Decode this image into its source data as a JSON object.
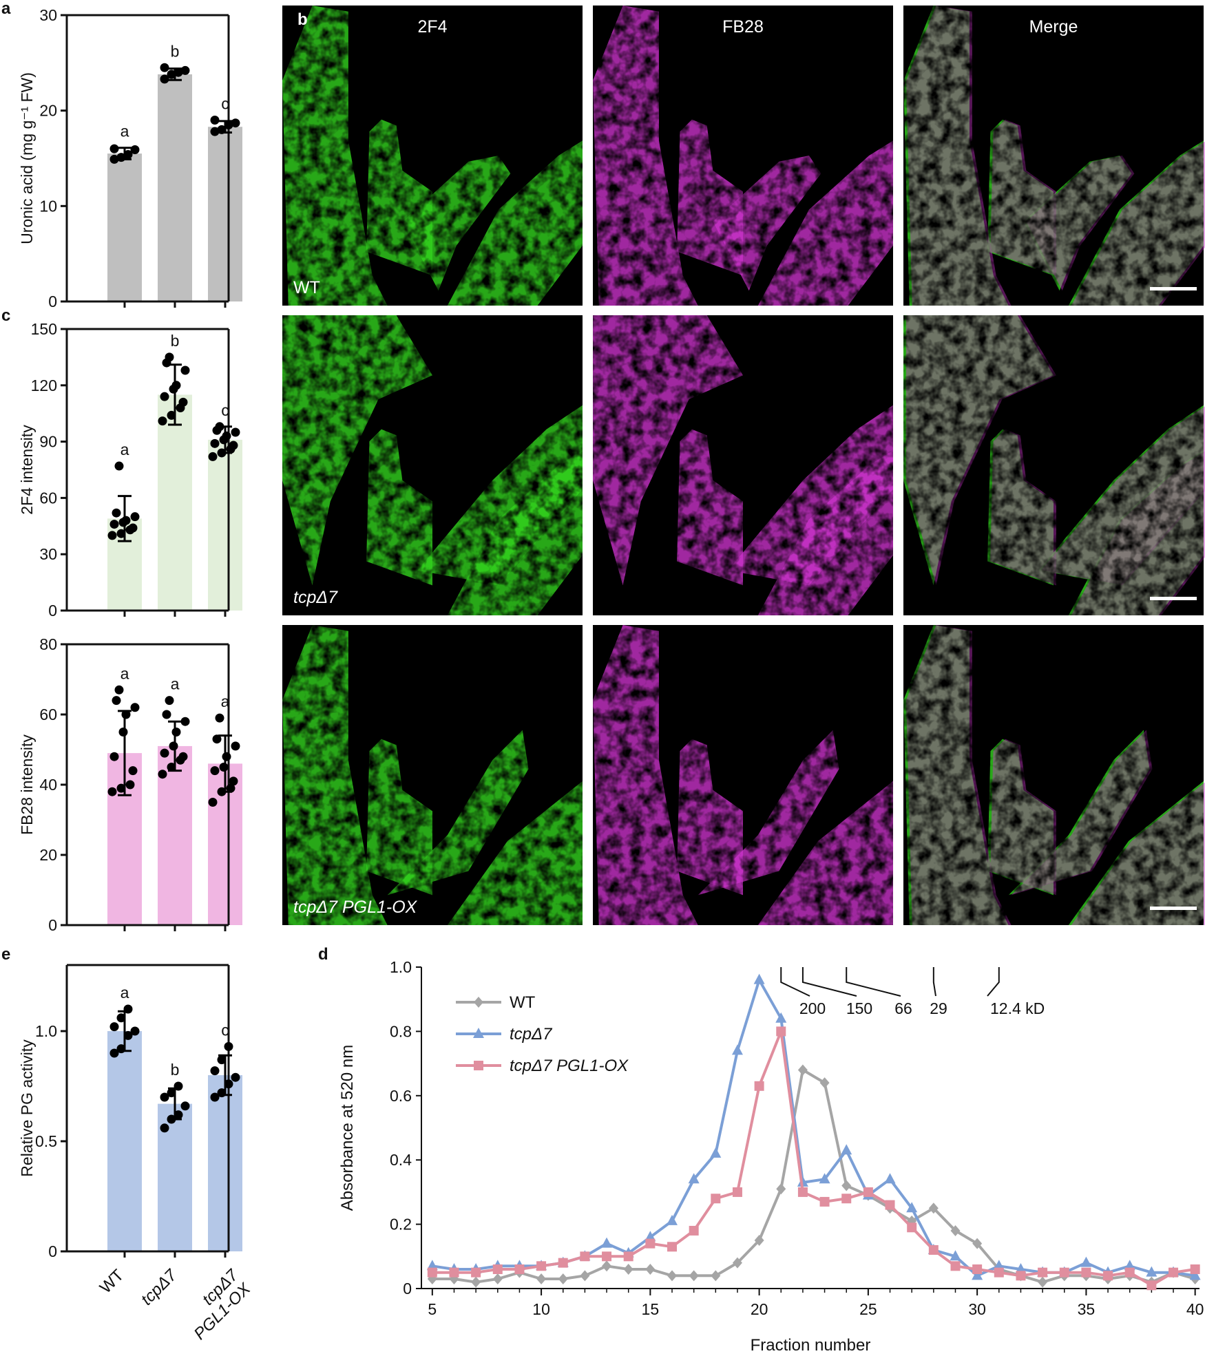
{
  "figure": {
    "panel_letters": [
      "a",
      "b",
      "c",
      "e",
      "d"
    ],
    "micro_columns": [
      "2F4",
      "FB28",
      "Merge"
    ],
    "micro_rows": [
      {
        "genotype": "WT"
      },
      {
        "genotype": "tcpΔ7"
      },
      {
        "genotype": "tcpΔ7 PGL1-OX"
      }
    ],
    "colors": {
      "wt_bar": "#bfbfbf",
      "panel_c1_bar": "#e2efda",
      "panel_c2_bar": "#f0b6e2",
      "panel_e_bar": "#b4c7e7",
      "wt_line": "#a5a5a5",
      "tcp_line": "#7b9fd6",
      "ox_line": "#e08e9e",
      "green_signal": "#32d21e",
      "magenta_signal": "#c832c8"
    }
  },
  "chart_data": [
    {
      "id": "a",
      "type": "bar",
      "categories": [
        "WT",
        "tcpΔ7",
        "tcpΔ7 PGL1-OX"
      ],
      "values": [
        15.5,
        23.8,
        18.3
      ],
      "errors": [
        0.6,
        0.6,
        0.6
      ],
      "points": [
        [
          14.9,
          15.1,
          15.4,
          15.9,
          16.0
        ],
        [
          23.3,
          23.8,
          24.0,
          24.2,
          24.5
        ],
        [
          17.8,
          18.0,
          18.5,
          18.7,
          19.0
        ]
      ],
      "sig_letters": [
        "a",
        "b",
        "c"
      ],
      "ylabel": "Uronic acid (mg g⁻¹ FW)",
      "ylim": [
        0,
        30
      ],
      "yticks": [
        0,
        10,
        20,
        30
      ],
      "bar_color": "#bfbfbf"
    },
    {
      "id": "c1",
      "type": "bar",
      "categories": [
        "WT",
        "tcpΔ7",
        "tcpΔ7 PGL1-OX"
      ],
      "values": [
        49,
        115,
        91
      ],
      "errors": [
        12,
        16,
        7
      ],
      "points": [
        [
          40,
          41,
          43,
          44,
          46,
          47,
          48,
          50,
          52,
          77
        ],
        [
          101,
          104,
          108,
          111,
          114,
          118,
          120,
          128,
          132,
          135
        ],
        [
          82,
          84,
          86,
          88,
          89,
          91,
          93,
          95,
          96,
          98
        ]
      ],
      "sig_letters": [
        "a",
        "b",
        "c"
      ],
      "ylabel": "2F4 intensity",
      "ylim": [
        0,
        150
      ],
      "yticks": [
        0,
        30,
        60,
        90,
        120,
        150
      ],
      "bar_color": "#e2efda"
    },
    {
      "id": "c2",
      "type": "bar",
      "categories": [
        "WT",
        "tcpΔ7",
        "tcpΔ7 PGL1-OX"
      ],
      "values": [
        49,
        51,
        46
      ],
      "errors": [
        12,
        7,
        8
      ],
      "points": [
        [
          38,
          39,
          40,
          44,
          48,
          55,
          60,
          62,
          64,
          67
        ],
        [
          43,
          45,
          47,
          48,
          49,
          51,
          55,
          58,
          60,
          64
        ],
        [
          35,
          38,
          39,
          41,
          44,
          45,
          48,
          51,
          53,
          59
        ]
      ],
      "sig_letters": [
        "a",
        "a",
        "a"
      ],
      "ylabel": "FB28 intensity",
      "ylim": [
        0,
        80
      ],
      "yticks": [
        0,
        20,
        40,
        60,
        80
      ],
      "bar_color": "#f0b6e2"
    },
    {
      "id": "e",
      "type": "bar",
      "categories": [
        "WT",
        "tcpΔ7",
        "tcpΔ7 PGL1-OX"
      ],
      "values": [
        1.0,
        0.67,
        0.8
      ],
      "errors": [
        0.09,
        0.07,
        0.09
      ],
      "points": [
        [
          0.9,
          0.92,
          0.98,
          1.0,
          1.02,
          1.06,
          1.1
        ],
        [
          0.56,
          0.6,
          0.62,
          0.66,
          0.7,
          0.72,
          0.75
        ],
        [
          0.7,
          0.72,
          0.76,
          0.79,
          0.82,
          0.87,
          0.93
        ]
      ],
      "sig_letters": [
        "a",
        "b",
        "c"
      ],
      "ylabel": "Relative PG activity",
      "ylim": [
        0,
        1.3
      ],
      "yticks": [
        0,
        0.5,
        1.0
      ],
      "ytick_labels": [
        "0",
        "0.5",
        "1.0"
      ],
      "bar_color": "#b4c7e7"
    },
    {
      "id": "d",
      "type": "line",
      "x": [
        5,
        6,
        7,
        8,
        9,
        10,
        11,
        12,
        13,
        14,
        15,
        16,
        17,
        18,
        19,
        20,
        21,
        22,
        23,
        24,
        25,
        26,
        27,
        28,
        29,
        30,
        31,
        32,
        33,
        34,
        35,
        36,
        37,
        38,
        39,
        40
      ],
      "series": [
        {
          "name": "WT",
          "marker": "diamond",
          "color": "#a5a5a5",
          "values": [
            0.03,
            0.03,
            0.02,
            0.03,
            0.05,
            0.03,
            0.03,
            0.04,
            0.07,
            0.06,
            0.06,
            0.04,
            0.04,
            0.04,
            0.08,
            0.15,
            0.31,
            0.68,
            0.64,
            0.32,
            0.29,
            0.25,
            0.21,
            0.25,
            0.18,
            0.14,
            0.06,
            0.04,
            0.02,
            0.04,
            0.04,
            0.03,
            0.04,
            0.02,
            0.05,
            0.03
          ]
        },
        {
          "name": "tcpΔ7",
          "marker": "triangle",
          "color": "#7b9fd6",
          "values": [
            0.07,
            0.06,
            0.06,
            0.07,
            0.07,
            0.07,
            0.08,
            0.1,
            0.14,
            0.11,
            0.16,
            0.21,
            0.34,
            0.42,
            0.74,
            0.96,
            0.84,
            0.33,
            0.34,
            0.43,
            0.29,
            0.34,
            0.25,
            0.12,
            0.1,
            0.04,
            0.07,
            0.06,
            0.05,
            0.05,
            0.08,
            0.05,
            0.07,
            0.05,
            0.05,
            0.04
          ]
        },
        {
          "name": "tcpΔ7 PGL1-OX",
          "marker": "square",
          "color": "#e08e9e",
          "values": [
            0.05,
            0.05,
            0.05,
            0.06,
            0.06,
            0.07,
            0.08,
            0.1,
            0.1,
            0.1,
            0.14,
            0.13,
            0.18,
            0.28,
            0.3,
            0.63,
            0.8,
            0.3,
            0.27,
            0.28,
            0.3,
            0.26,
            0.19,
            0.12,
            0.07,
            0.06,
            0.05,
            0.04,
            0.05,
            0.05,
            0.05,
            0.04,
            0.05,
            0.01,
            0.05,
            0.06
          ]
        }
      ],
      "xlabel": "Fraction number",
      "ylabel": "Absorbance at 520 nm",
      "xlim": [
        4.5,
        40.2
      ],
      "ylim": [
        0,
        1.0
      ],
      "xticks": [
        5,
        10,
        15,
        20,
        25,
        30,
        35,
        40
      ],
      "yticks": [
        0,
        0.2,
        0.4,
        0.6,
        0.8,
        1.0
      ],
      "ytick_labels": [
        "0",
        "0.2",
        "0.4",
        "0.6",
        "0.8",
        "1.0"
      ],
      "legend": "top-left",
      "markers": [
        {
          "x": 21.0,
          "label": "200"
        },
        {
          "x": 22.0,
          "label": "150"
        },
        {
          "x": 24.0,
          "label": "66"
        },
        {
          "x": 28.0,
          "label": "29"
        },
        {
          "x": 31.0,
          "label": "12.4 kD"
        }
      ]
    }
  ]
}
